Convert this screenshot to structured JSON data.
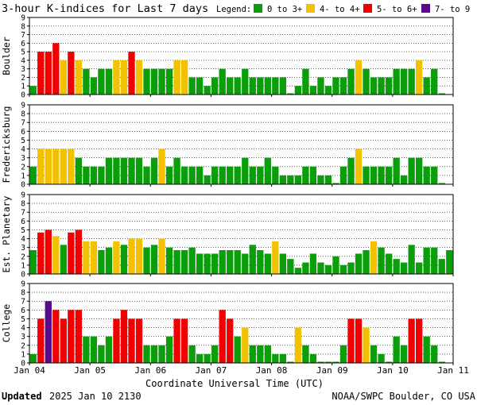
{
  "title": "3-hour K-indices for Last 7 days",
  "legend": {
    "label": "Legend:",
    "items": [
      {
        "label": "0 to 3+",
        "color": "#0a9e0a"
      },
      {
        "label": "4- to 4+",
        "color": "#f2c200"
      },
      {
        "label": "5- to 6+",
        "color": "#f00000"
      },
      {
        "label": "7- to 9",
        "color": "#5a0a8c"
      }
    ]
  },
  "x_axis": {
    "title": "Coordinate Universal Time (UTC)",
    "tick_labels": [
      "Jan 04",
      "Jan 05",
      "Jan 06",
      "Jan 07",
      "Jan 08",
      "Jan 09",
      "Jan 10",
      "Jan 11"
    ]
  },
  "footer": {
    "updated_label": "Updated",
    "updated_value": "2025 Jan 10 2130",
    "credit": "NOAA/SWPC Boulder, CO USA"
  },
  "chart_data": [
    {
      "type": "bar",
      "station": "Boulder",
      "ylim": [
        0,
        9
      ],
      "yticks": [
        "0",
        "1",
        "2",
        "3",
        "4",
        "5",
        "6",
        "7",
        "8",
        "9"
      ],
      "values": [
        1,
        5,
        5,
        6,
        4,
        5,
        4,
        3,
        2,
        3,
        3,
        4,
        4,
        5,
        4,
        3,
        3,
        3,
        3,
        4,
        4,
        2,
        2,
        1,
        2,
        3,
        2,
        2,
        3,
        2,
        2,
        2,
        2,
        2,
        0,
        1,
        3,
        1,
        2,
        1,
        2,
        2,
        3,
        4,
        3,
        2,
        2,
        2,
        3,
        3,
        3,
        4,
        2,
        3,
        0
      ]
    },
    {
      "type": "bar",
      "station": "Fredericksburg",
      "ylim": [
        0,
        9
      ],
      "yticks": [
        "0",
        "1",
        "2",
        "3",
        "4",
        "5",
        "6",
        "7",
        "8",
        "9"
      ],
      "values": [
        2,
        4,
        4,
        4,
        4,
        4,
        3,
        2,
        2,
        2,
        3,
        3,
        3,
        3,
        3,
        2,
        3,
        4,
        2,
        3,
        2,
        2,
        2,
        1,
        2,
        2,
        2,
        2,
        3,
        2,
        2,
        3,
        2,
        1,
        1,
        1,
        2,
        2,
        1,
        1,
        0,
        2,
        3,
        4,
        2,
        2,
        2,
        2,
        3,
        1,
        3,
        3,
        2,
        2,
        0
      ]
    },
    {
      "type": "bar",
      "station": "Est. Planetary",
      "ylim": [
        0,
        9
      ],
      "yticks": [
        "0",
        "1",
        "2",
        "3",
        "4",
        "5",
        "6",
        "7",
        "8",
        "9"
      ],
      "values": [
        2.7,
        4.7,
        5,
        4.3,
        3.3,
        4.7,
        5,
        3.7,
        3.7,
        2.7,
        3,
        3.7,
        3.3,
        4,
        4,
        3,
        3.3,
        4,
        3,
        2.7,
        2.7,
        3,
        2.3,
        2.3,
        2.3,
        2.7,
        2.7,
        2.7,
        2.3,
        3.3,
        2.7,
        2.3,
        3.7,
        2.3,
        1.7,
        0.7,
        1.3,
        2.3,
        1.3,
        1,
        2,
        1,
        1.3,
        2.3,
        2.7,
        3.7,
        3,
        2.3,
        1.7,
        1.3,
        3.3,
        1.3,
        3,
        3,
        1.7,
        2.7
      ]
    },
    {
      "type": "bar",
      "station": "College",
      "ylim": [
        0,
        9
      ],
      "yticks": [
        "0",
        "1",
        "2",
        "3",
        "4",
        "5",
        "6",
        "7",
        "8",
        "9"
      ],
      "values": [
        1,
        5,
        7,
        6,
        5,
        6,
        6,
        3,
        3,
        2,
        3,
        5,
        6,
        5,
        5,
        2,
        2,
        2,
        3,
        5,
        5,
        2,
        1,
        1,
        2,
        6,
        5,
        3,
        4,
        2,
        2,
        2,
        1,
        1,
        0,
        4,
        2,
        1,
        0,
        0,
        0,
        2,
        5,
        5,
        4,
        2,
        1,
        0,
        3,
        2,
        5,
        5,
        3,
        2,
        0
      ]
    }
  ]
}
